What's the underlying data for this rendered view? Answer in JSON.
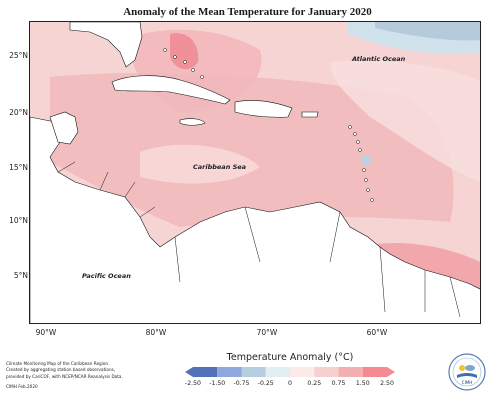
{
  "title": "Anomaly of the Mean Temperature for January 2020",
  "y_axis_labels": [
    "25°N",
    "20°N",
    "15°N",
    "10°N",
    "5°N"
  ],
  "x_axis_labels": [
    "90°W",
    "80°W",
    "70°W",
    "60°W"
  ],
  "ocean_labels": {
    "atlantic": "Atlantic Ocean",
    "caribbean": "Caribbean Sea",
    "pacific": "Pacific Ocean"
  },
  "legend": {
    "title": "Temperature Anomaly (°C)",
    "bins": [
      {
        "from": -2.5,
        "to": -1.5,
        "color": "#5472b8"
      },
      {
        "from": -1.5,
        "to": -0.75,
        "color": "#8ea7dc"
      },
      {
        "from": -0.75,
        "to": -0.25,
        "color": "#b7cde0"
      },
      {
        "from": -0.25,
        "to": 0,
        "color": "#e2eef2"
      },
      {
        "from": 0,
        "to": 0.25,
        "color": "#fbeceb"
      },
      {
        "from": 0.25,
        "to": 0.75,
        "color": "#f6d0d0"
      },
      {
        "from": 0.75,
        "to": 1.5,
        "color": "#f2b0b3"
      },
      {
        "from": 1.5,
        "to": 2.5,
        "color": "#f38a92"
      }
    ],
    "tick_labels": [
      "-2.50",
      "-1.50",
      "-0.75",
      "-0.25",
      "0",
      "0.25",
      "0.75",
      "1.50",
      "2.50"
    ]
  },
  "credit_lines": [
    "Climate Monitoring Map of the Caribbean Region.",
    "Created by aggregating station based observations,",
    "provided by CariCOF, with NCEP/NCAR Reanalysis Data.",
    "CIMH Feb.2020"
  ],
  "logo_text": "CIMH",
  "colors": {
    "land": "#ffffff",
    "coast": "#111111",
    "frame": "#222222"
  }
}
